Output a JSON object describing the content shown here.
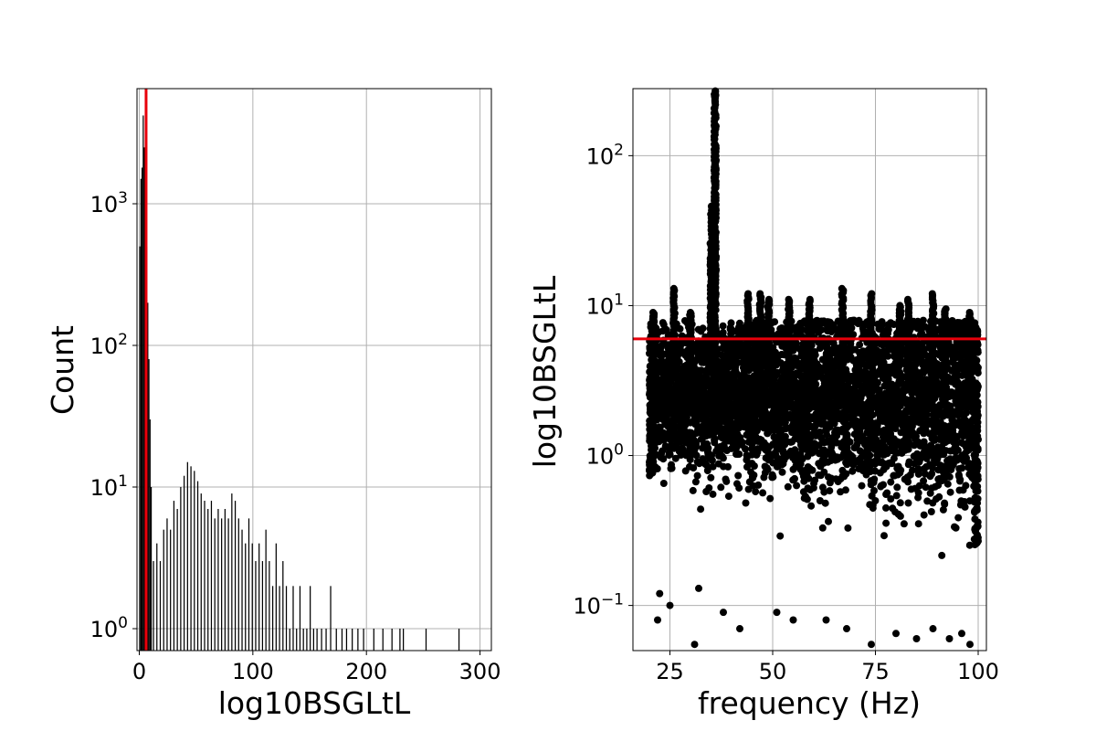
{
  "chart_data": [
    {
      "type": "bar",
      "subtype": "histogram",
      "xlabel": "log10BSGLtL",
      "ylabel": "Count",
      "xlim": [
        -2,
        310
      ],
      "ylim": [
        0.7,
        6500
      ],
      "yscale": "log",
      "grid": true,
      "xticks": [
        0,
        100,
        200,
        300
      ],
      "xtick_labels": [
        "0",
        "100",
        "200",
        "300"
      ],
      "yticks": [
        1,
        10,
        100,
        1000
      ],
      "ytick_labels": [
        {
          "base": "10",
          "exp": "0"
        },
        {
          "base": "10",
          "exp": "1"
        },
        {
          "base": "10",
          "exp": "2"
        },
        {
          "base": "10",
          "exp": "3"
        }
      ],
      "bins": [
        {
          "x": 0,
          "count": 500
        },
        {
          "x": 1,
          "count": 1500
        },
        {
          "x": 2,
          "count": 1800
        },
        {
          "x": 3,
          "count": 4200
        },
        {
          "x": 4,
          "count": 2500
        },
        {
          "x": 5,
          "count": 1200
        },
        {
          "x": 6,
          "count": 500
        },
        {
          "x": 7,
          "count": 200
        },
        {
          "x": 8,
          "count": 80
        },
        {
          "x": 9,
          "count": 30
        },
        {
          "x": 10,
          "count": 10
        },
        {
          "x": 12,
          "count": 3
        },
        {
          "x": 15,
          "count": 4
        },
        {
          "x": 18,
          "count": 3
        },
        {
          "x": 21,
          "count": 5
        },
        {
          "x": 24,
          "count": 6
        },
        {
          "x": 27,
          "count": 5
        },
        {
          "x": 30,
          "count": 8
        },
        {
          "x": 33,
          "count": 7
        },
        {
          "x": 36,
          "count": 10
        },
        {
          "x": 39,
          "count": 12
        },
        {
          "x": 42,
          "count": 15
        },
        {
          "x": 45,
          "count": 14
        },
        {
          "x": 48,
          "count": 13
        },
        {
          "x": 51,
          "count": 11
        },
        {
          "x": 54,
          "count": 9
        },
        {
          "x": 57,
          "count": 8
        },
        {
          "x": 60,
          "count": 7
        },
        {
          "x": 63,
          "count": 8
        },
        {
          "x": 66,
          "count": 6
        },
        {
          "x": 69,
          "count": 7
        },
        {
          "x": 72,
          "count": 6
        },
        {
          "x": 75,
          "count": 7
        },
        {
          "x": 78,
          "count": 6
        },
        {
          "x": 81,
          "count": 9
        },
        {
          "x": 84,
          "count": 8
        },
        {
          "x": 87,
          "count": 6
        },
        {
          "x": 90,
          "count": 5
        },
        {
          "x": 93,
          "count": 4
        },
        {
          "x": 96,
          "count": 6
        },
        {
          "x": 99,
          "count": 4
        },
        {
          "x": 102,
          "count": 3
        },
        {
          "x": 105,
          "count": 4
        },
        {
          "x": 108,
          "count": 3
        },
        {
          "x": 111,
          "count": 5
        },
        {
          "x": 114,
          "count": 3
        },
        {
          "x": 117,
          "count": 2
        },
        {
          "x": 120,
          "count": 4
        },
        {
          "x": 123,
          "count": 2
        },
        {
          "x": 126,
          "count": 3
        },
        {
          "x": 129,
          "count": 2
        },
        {
          "x": 132,
          "count": 1
        },
        {
          "x": 135,
          "count": 2
        },
        {
          "x": 138,
          "count": 1
        },
        {
          "x": 141,
          "count": 2
        },
        {
          "x": 144,
          "count": 1
        },
        {
          "x": 147,
          "count": 1
        },
        {
          "x": 150,
          "count": 2
        },
        {
          "x": 153,
          "count": 1
        },
        {
          "x": 156,
          "count": 1
        },
        {
          "x": 160,
          "count": 1
        },
        {
          "x": 164,
          "count": 1
        },
        {
          "x": 168,
          "count": 2
        },
        {
          "x": 173,
          "count": 1
        },
        {
          "x": 178,
          "count": 1
        },
        {
          "x": 182,
          "count": 1
        },
        {
          "x": 187,
          "count": 1
        },
        {
          "x": 192,
          "count": 1
        },
        {
          "x": 197,
          "count": 1
        },
        {
          "x": 206,
          "count": 1
        },
        {
          "x": 214,
          "count": 1
        },
        {
          "x": 222,
          "count": 1
        },
        {
          "x": 229,
          "count": 1
        },
        {
          "x": 232,
          "count": 1
        },
        {
          "x": 252,
          "count": 1
        },
        {
          "x": 281,
          "count": 1
        }
      ],
      "bar_color": "#000000",
      "vline": {
        "x": 6,
        "color": "#e8000b"
      }
    },
    {
      "type": "scatter",
      "xlabel": "frequency (Hz)",
      "ylabel": "log10BSGLtL",
      "xlim": [
        16,
        102
      ],
      "ylim": [
        0.05,
        280
      ],
      "yscale": "log",
      "grid": true,
      "xticks": [
        25,
        50,
        75,
        100
      ],
      "xtick_labels": [
        "25",
        "50",
        "75",
        "100"
      ],
      "yticks": [
        0.1,
        1,
        10,
        100
      ],
      "ytick_labels": [
        {
          "base": "10",
          "exp": "−1"
        },
        {
          "base": "10",
          "exp": "0"
        },
        {
          "base": "10",
          "exp": "1"
        },
        {
          "base": "10",
          "exp": "2"
        }
      ],
      "x_range": [
        20,
        100
      ],
      "median_y": 2.5,
      "peaks": [
        {
          "x": 36,
          "y": 270
        },
        {
          "x": 36,
          "y": 120
        },
        {
          "x": 35,
          "y": 46
        },
        {
          "x": 35,
          "y": 26
        },
        {
          "x": 35.5,
          "y": 20
        },
        {
          "x": 26,
          "y": 13
        },
        {
          "x": 44,
          "y": 12
        },
        {
          "x": 47,
          "y": 12
        },
        {
          "x": 49,
          "y": 11
        },
        {
          "x": 54,
          "y": 11
        },
        {
          "x": 59,
          "y": 11
        },
        {
          "x": 67,
          "y": 13
        },
        {
          "x": 74,
          "y": 12
        },
        {
          "x": 81,
          "y": 10
        },
        {
          "x": 83,
          "y": 11
        },
        {
          "x": 89,
          "y": 12
        },
        {
          "x": 92,
          "y": 9.5
        },
        {
          "x": 98,
          "y": 9
        },
        {
          "x": 21,
          "y": 9
        },
        {
          "x": 30,
          "y": 9
        }
      ],
      "low_points": [
        {
          "x": 22,
          "y": 0.08
        },
        {
          "x": 22.5,
          "y": 0.12
        },
        {
          "x": 25,
          "y": 0.1
        },
        {
          "x": 31,
          "y": 0.055
        },
        {
          "x": 32,
          "y": 0.13
        },
        {
          "x": 38,
          "y": 0.09
        },
        {
          "x": 42,
          "y": 0.07
        },
        {
          "x": 51,
          "y": 0.09
        },
        {
          "x": 55,
          "y": 0.08
        },
        {
          "x": 63,
          "y": 0.08
        },
        {
          "x": 68,
          "y": 0.07
        },
        {
          "x": 74,
          "y": 0.055
        },
        {
          "x": 80,
          "y": 0.065
        },
        {
          "x": 85,
          "y": 0.06
        },
        {
          "x": 89,
          "y": 0.07
        },
        {
          "x": 93,
          "y": 0.06
        },
        {
          "x": 96,
          "y": 0.065
        },
        {
          "x": 98,
          "y": 0.055
        }
      ],
      "marker_color": "#000000",
      "hline": {
        "y": 6,
        "color": "#e8000b"
      }
    }
  ]
}
